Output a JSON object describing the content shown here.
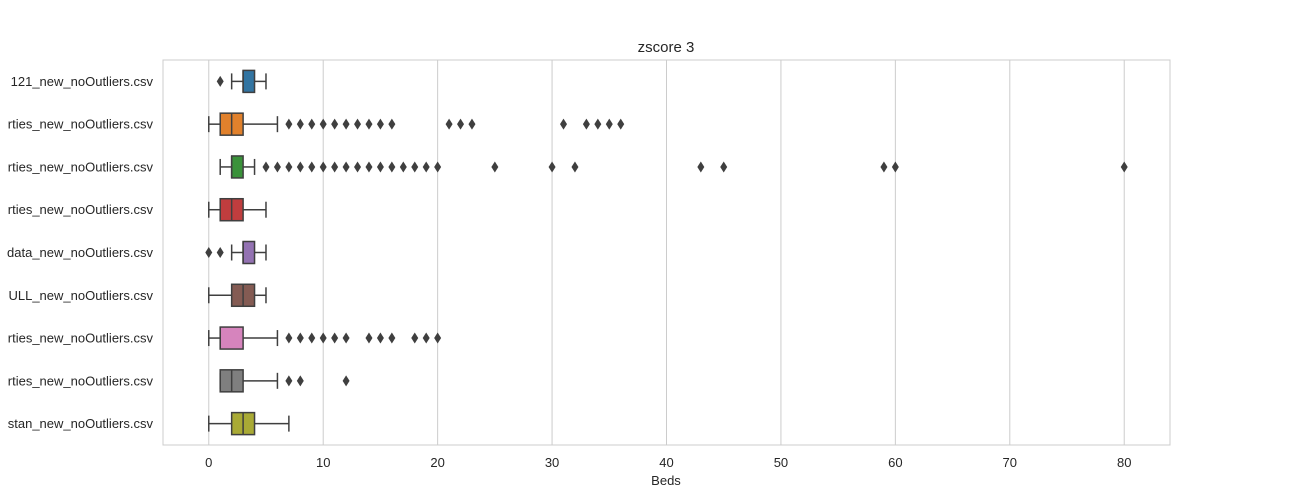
{
  "chart_data": {
    "type": "boxplot",
    "orientation": "horizontal",
    "title": "zscore 3",
    "xlabel": "Beds",
    "ylabel": "",
    "xlim": [
      -4,
      84
    ],
    "xticks": [
      0,
      10,
      20,
      30,
      40,
      50,
      60,
      70,
      80
    ],
    "grid": "vertical",
    "categories": [
      "121_new_noOutliers.csv",
      "rties_new_noOutliers.csv",
      "rties_new_noOutliers.csv",
      "rties_new_noOutliers.csv",
      "data_new_noOutliers.csv",
      "ULL_new_noOutliers.csv",
      "rties_new_noOutliers.csv",
      "rties_new_noOutliers.csv",
      "stan_new_noOutliers.csv"
    ],
    "boxes": [
      {
        "whisker_low": 2,
        "q1": 3,
        "median": 3,
        "q3": 4,
        "whisker_high": 5,
        "outliers": [
          1
        ],
        "color": "#3274a1"
      },
      {
        "whisker_low": 0,
        "q1": 1,
        "median": 2,
        "q3": 3,
        "whisker_high": 6,
        "outliers": [
          7,
          8,
          9,
          10,
          11,
          12,
          13,
          14,
          15,
          16,
          21,
          22,
          23,
          31,
          33,
          34,
          35,
          36
        ],
        "color": "#e1812c"
      },
      {
        "whisker_low": 1,
        "q1": 2,
        "median": 2,
        "q3": 3,
        "whisker_high": 4,
        "outliers": [
          5,
          6,
          7,
          8,
          9,
          10,
          11,
          12,
          13,
          14,
          15,
          16,
          17,
          18,
          19,
          20,
          25,
          30,
          32,
          43,
          45,
          59,
          60,
          80
        ],
        "color": "#3a923a"
      },
      {
        "whisker_low": 0,
        "q1": 1,
        "median": 2,
        "q3": 3,
        "whisker_high": 5,
        "outliers": [],
        "color": "#c03d3e"
      },
      {
        "whisker_low": 2,
        "q1": 3,
        "median": 3,
        "q3": 4,
        "whisker_high": 5,
        "outliers": [
          0,
          1
        ],
        "color": "#9372b2"
      },
      {
        "whisker_low": 0,
        "q1": 2,
        "median": 3,
        "q3": 4,
        "whisker_high": 5,
        "outliers": [],
        "color": "#845b53"
      },
      {
        "whisker_low": 0,
        "q1": 1,
        "median": 1,
        "q3": 3,
        "whisker_high": 6,
        "outliers": [
          7,
          8,
          9,
          10,
          11,
          12,
          14,
          15,
          16,
          18,
          19,
          20
        ],
        "color": "#d684bd"
      },
      {
        "whisker_low": 1,
        "q1": 1,
        "median": 2,
        "q3": 3,
        "whisker_high": 6,
        "outliers": [
          7,
          8,
          12
        ],
        "color": "#7f7f7f"
      },
      {
        "whisker_low": 0,
        "q1": 2,
        "median": 3,
        "q3": 4,
        "whisker_high": 7,
        "outliers": [],
        "color": "#a9aa35"
      }
    ]
  }
}
